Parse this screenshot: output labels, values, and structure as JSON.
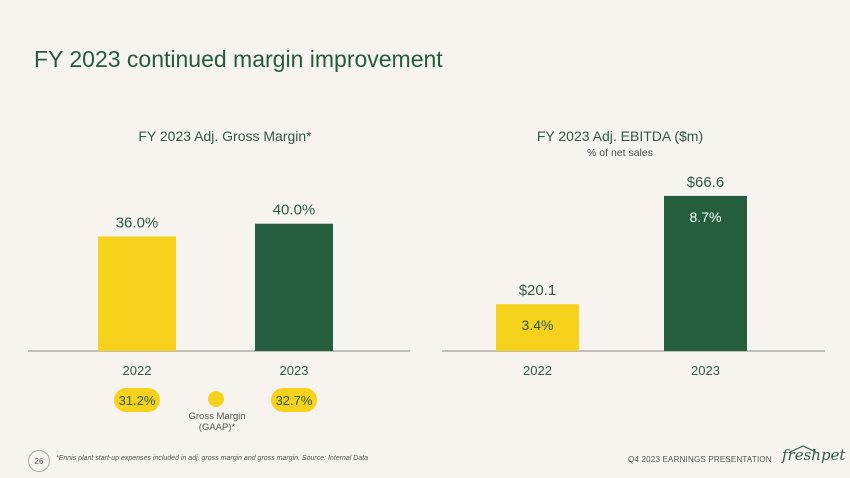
{
  "title": "FY 2023 continued margin improvement",
  "colors": {
    "yellow": "#f7d21c",
    "green": "#255e3f",
    "axis": "#888888"
  },
  "chart_data": [
    {
      "type": "bar",
      "title": "FY 2023 Adj. Gross Margin*",
      "categories": [
        "2022",
        "2023"
      ],
      "values": [
        36.0,
        40.0
      ],
      "value_labels": [
        "36.0%",
        "40.0%"
      ],
      "ylim": [
        0,
        44
      ]
    },
    {
      "type": "bar",
      "title": "FY 2023 Adj. EBITDA ($m)",
      "subtitle": "% of net sales",
      "categories": [
        "2022",
        "2023"
      ],
      "values": [
        20.1,
        66.6
      ],
      "value_labels": [
        "$20.1",
        "$66.6"
      ],
      "inner_labels": [
        "3.4%",
        "8.7%"
      ],
      "ylim": [
        0,
        73
      ]
    }
  ],
  "gaap": {
    "values": [
      "31.2%",
      "32.7%"
    ],
    "label_line1": "Gross Margin",
    "label_line2": "(GAAP)*"
  },
  "footer": {
    "page": "26",
    "footnote": "*Ennis plant start-up expenses included in adj. gross margin and gross margin. Source: Internal Data",
    "presentation": "Q4 2023 EARNINGS PRESENTATION",
    "logo": "freshpet"
  }
}
